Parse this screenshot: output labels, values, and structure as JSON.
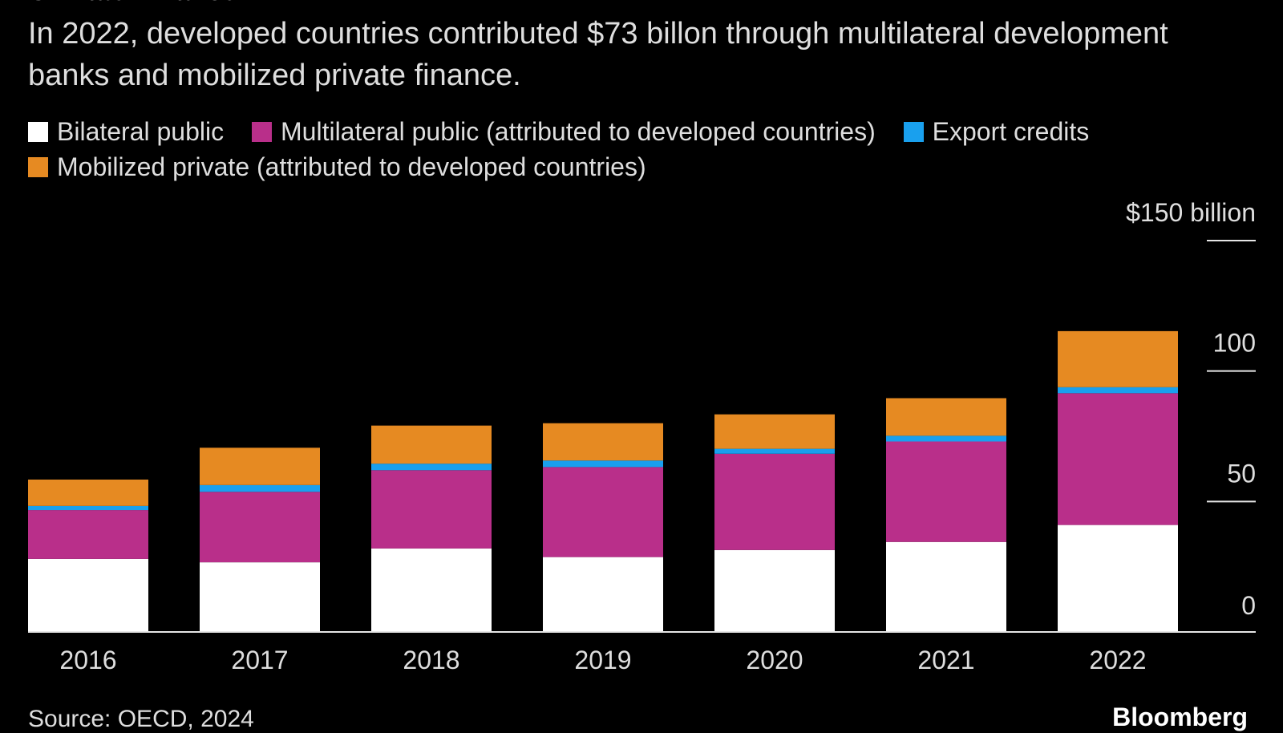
{
  "chart_data": {
    "type": "bar",
    "stacked": true,
    "title": "Climate Finance",
    "subtitle": "In 2022, developed countries contributed $73 billon through multilateral development banks and mobilized private finance.",
    "categories": [
      "2016",
      "2017",
      "2018",
      "2019",
      "2020",
      "2021",
      "2022"
    ],
    "series": [
      {
        "name": "Bilateral public",
        "color": "#ffffff",
        "values": [
          28.0,
          26.7,
          32.0,
          28.7,
          31.4,
          34.5,
          41.0
        ]
      },
      {
        "name": "Multilateral public (attributed to developed countries)",
        "color": "#b92f8a",
        "values": [
          18.7,
          27.0,
          30.0,
          34.5,
          36.9,
          38.5,
          50.5
        ]
      },
      {
        "name": "Export credits",
        "color": "#19a0ee",
        "values": [
          1.6,
          2.6,
          2.5,
          2.5,
          1.9,
          2.2,
          2.3
        ]
      },
      {
        "name": "Mobilized private (attributed to developed countries)",
        "color": "#e68a22",
        "values": [
          10.1,
          14.3,
          14.6,
          14.3,
          13.2,
          14.4,
          21.5
        ]
      }
    ],
    "ylim": [
      0,
      150
    ],
    "yticks": [
      0,
      50,
      100,
      150
    ],
    "ytick_labels": [
      "0",
      "50",
      "100",
      "$150 billion"
    ],
    "axis_color": "#e6e6e6",
    "grid": false,
    "legend_position": "top-left"
  },
  "footer": {
    "source": "Source: OECD, 2024",
    "brand": "Bloomberg"
  }
}
